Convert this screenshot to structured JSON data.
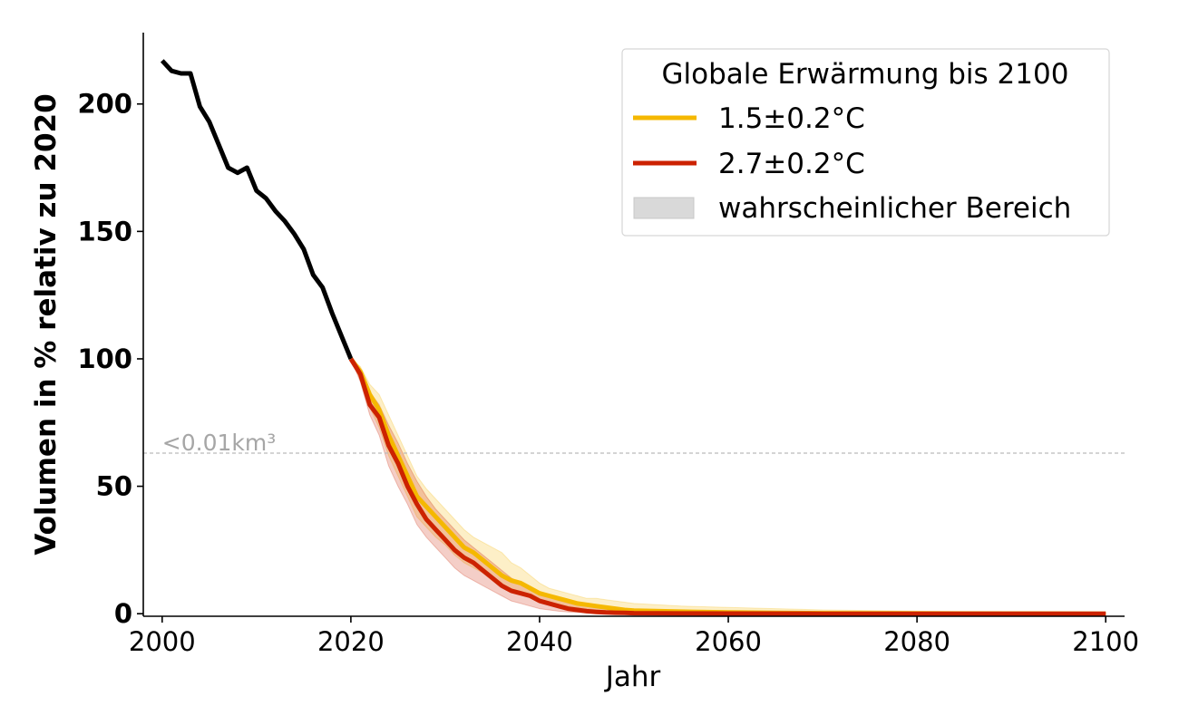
{
  "chart_data": {
    "type": "line",
    "title": "",
    "xlabel": "Jahr",
    "ylabel": "Volumen in % relativ zu 2020",
    "xlim": [
      1998,
      2102
    ],
    "ylim": [
      -1,
      228
    ],
    "xticks": [
      2000,
      2020,
      2040,
      2060,
      2080,
      2100
    ],
    "yticks": [
      0,
      50,
      100,
      150,
      200
    ],
    "grid": false,
    "legend": {
      "title": "Globale Erwärmung bis 2100",
      "placement": "top-right",
      "entries": [
        "1.5±0.2°C",
        "2.7±0.2°C",
        "wahrscheinlicher Bereich"
      ]
    },
    "threshold": {
      "y": 63,
      "label": "<0.01km³",
      "color": "#bbbbbb"
    },
    "colors": {
      "historical": "#000000",
      "low": "#f5b800",
      "high": "#cc2200",
      "range": "#d9d9d9"
    },
    "historical": {
      "x": [
        2000,
        2001,
        2002,
        2003,
        2004,
        2005,
        2006,
        2007,
        2008,
        2009,
        2010,
        2011,
        2012,
        2013,
        2014,
        2015,
        2016,
        2017,
        2018,
        2019,
        2020
      ],
      "y": [
        217,
        213,
        212,
        212,
        199,
        193,
        184,
        175,
        173,
        175,
        166,
        163,
        158,
        154,
        149,
        143,
        133,
        128,
        118,
        109,
        100
      ]
    },
    "series": [
      {
        "name": "1.5±0.2°C",
        "color": "#f5b800",
        "x": [
          2020,
          2021,
          2022,
          2023,
          2024,
          2025,
          2026,
          2027,
          2028,
          2029,
          2030,
          2031,
          2032,
          2033,
          2034,
          2035,
          2036,
          2037,
          2038,
          2039,
          2040,
          2041,
          2042,
          2043,
          2044,
          2045,
          2046,
          2047,
          2048,
          2049,
          2050,
          2055,
          2060,
          2065,
          2070,
          2080,
          2090,
          2100
        ],
        "y": [
          100,
          95,
          86,
          80,
          70,
          62,
          54,
          46,
          42,
          38,
          34,
          30,
          26,
          24,
          21,
          18,
          15,
          13,
          12,
          10,
          8,
          7,
          6,
          5,
          4,
          3.5,
          3,
          2.5,
          2,
          1.5,
          1.2,
          0.8,
          0.5,
          0.3,
          0.2,
          0.1,
          0.05,
          0
        ],
        "band_low": [
          100,
          92,
          81,
          73,
          62,
          54,
          46,
          38,
          34,
          30,
          27,
          23,
          20,
          18,
          16,
          13,
          11,
          9,
          8,
          7,
          5,
          4,
          3.5,
          3,
          2.5,
          2,
          1.5,
          1.2,
          1,
          0.8,
          0.5,
          0.3,
          0.2,
          0.1,
          0.05,
          0,
          0,
          0
        ],
        "band_high": [
          100,
          97,
          90,
          86,
          78,
          70,
          62,
          54,
          49,
          45,
          41,
          37,
          33,
          30,
          28,
          26,
          24,
          20,
          18,
          15,
          12,
          10,
          9,
          8,
          7,
          6,
          6,
          5.5,
          5,
          4.5,
          4,
          3,
          2.5,
          2,
          1.5,
          1,
          0.5,
          0.3
        ]
      },
      {
        "name": "2.7±0.2°C",
        "color": "#cc2200",
        "x": [
          2020,
          2021,
          2022,
          2023,
          2024,
          2025,
          2026,
          2027,
          2028,
          2029,
          2030,
          2031,
          2032,
          2033,
          2034,
          2035,
          2036,
          2037,
          2038,
          2039,
          2040,
          2041,
          2042,
          2043,
          2044,
          2045,
          2046,
          2047,
          2048,
          2049,
          2050,
          2055,
          2060,
          2070,
          2080,
          2090,
          2100
        ],
        "y": [
          100,
          94,
          82,
          77,
          66,
          59,
          50,
          43,
          37,
          33,
          29,
          25,
          22,
          20,
          17,
          14,
          11,
          9,
          8,
          7,
          5,
          4,
          3,
          2,
          1.5,
          1,
          0.7,
          0.5,
          0.4,
          0.3,
          0.2,
          0.1,
          0.05,
          0,
          0,
          0,
          0
        ],
        "band_low": [
          100,
          91,
          78,
          70,
          58,
          50,
          43,
          35,
          30,
          26,
          22,
          18,
          15,
          13,
          11,
          9,
          7,
          5,
          4,
          3,
          2,
          1.5,
          1,
          0.7,
          0.5,
          0.3,
          0.2,
          0.1,
          0.1,
          0,
          0,
          0,
          0,
          0,
          0,
          0,
          0
        ],
        "band_high": [
          100,
          96,
          87,
          82,
          74,
          67,
          59,
          52,
          46,
          41,
          37,
          33,
          29,
          26,
          23,
          20,
          17,
          14,
          12,
          10,
          8,
          7,
          5.5,
          4.5,
          3.5,
          3,
          2.5,
          2,
          1.5,
          1.2,
          1,
          0.6,
          0.4,
          0.2,
          0.1,
          0.05,
          0
        ]
      }
    ]
  }
}
